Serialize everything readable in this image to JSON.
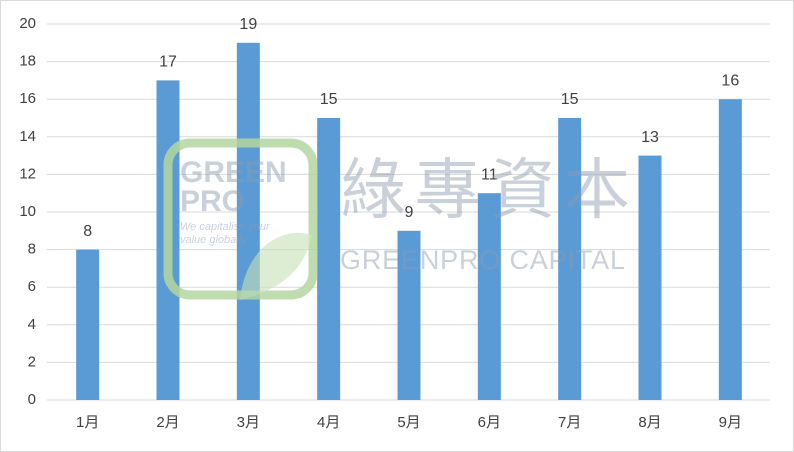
{
  "chart_data": {
    "type": "bar",
    "categories": [
      "1月",
      "2月",
      "3月",
      "4月",
      "5月",
      "6月",
      "7月",
      "8月",
      "9月"
    ],
    "values": [
      8,
      17,
      19,
      15,
      9,
      11,
      15,
      13,
      16
    ],
    "color": "#5b9bd5",
    "ylim": [
      0,
      20
    ],
    "yticks": [
      0,
      2,
      4,
      6,
      8,
      10,
      12,
      14,
      16,
      18,
      20
    ],
    "grid": true,
    "data_labels": true,
    "watermark": {
      "logo_lines": [
        "GREEN",
        "PRO"
      ],
      "tagline": [
        "We capitalise your",
        "value globally"
      ],
      "name_cn": "綠專資本",
      "name_en": "GREENPRO CAPITAL"
    }
  }
}
